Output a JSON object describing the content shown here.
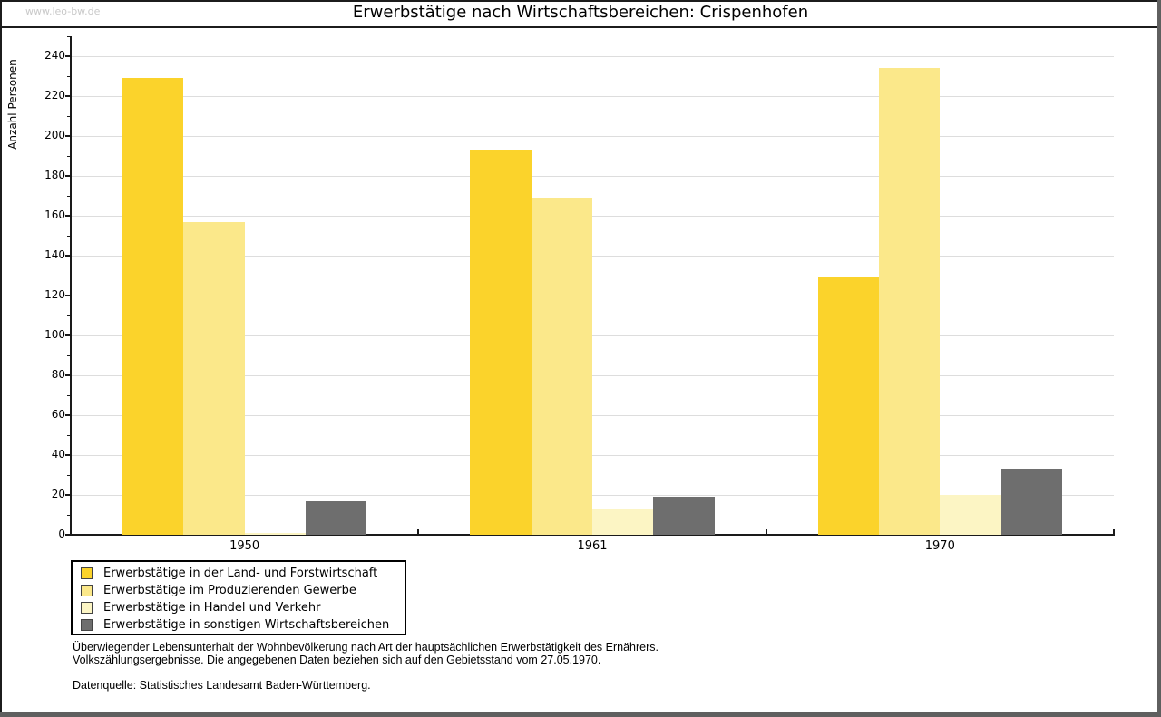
{
  "watermark": "www.leo-bw.de",
  "title": "Erwerbstätige nach Wirtschaftsbereichen: Crispenhofen",
  "chart_data": {
    "type": "bar",
    "title": "Erwerbstätige nach Wirtschaftsbereichen: Crispenhofen",
    "xlabel": "",
    "ylabel": "Anzahl Personen",
    "categories": [
      "1950",
      "1961",
      "1970"
    ],
    "series": [
      {
        "name": "Erwerbstätige in der Land- und Forstwirtschaft",
        "color": "#FBD32B",
        "values": [
          229,
          193,
          129
        ]
      },
      {
        "name": "Erwerbstätige im Produzierenden Gewerbe",
        "color": "#FBE88A",
        "values": [
          157,
          169,
          234
        ]
      },
      {
        "name": "Erwerbstätige in Handel und Verkehr",
        "color": "#FCF5C4",
        "values": [
          1,
          13,
          20
        ]
      },
      {
        "name": "Erwerbstätige in sonstigen Wirtschaftsbereichen",
        "color": "#6E6E6E",
        "values": [
          17,
          19,
          33
        ]
      }
    ],
    "ylim": [
      0,
      240
    ],
    "y_tick_step": 20,
    "y_minor_tick_step": 10,
    "grid": true,
    "gridline_color": "#dddddd",
    "legend_position": "bottom-left"
  },
  "footnotes": {
    "line1": "Überwiegender Lebensunterhalt der Wohnbevölkerung nach Art der hauptsächlichen Erwerbstätigkeit des Ernährers.",
    "line2": "Volkszählungsergebnisse. Die angegebenen Daten beziehen sich auf den Gebietsstand vom 27.05.1970.",
    "source": "Datenquelle: Statistisches Landesamt Baden-Württemberg."
  }
}
